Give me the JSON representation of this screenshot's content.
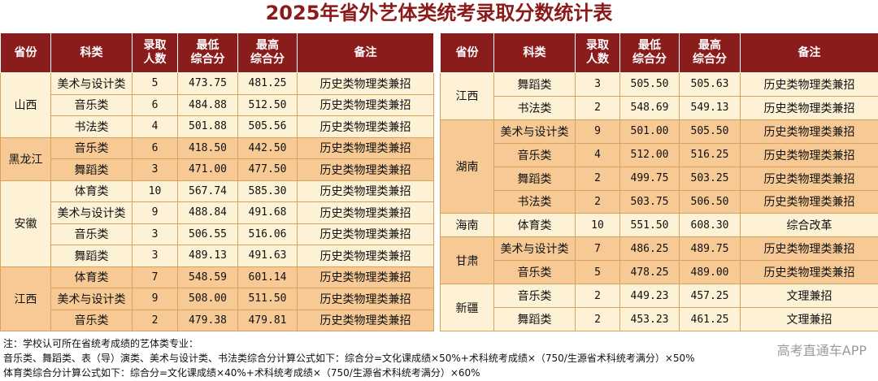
{
  "title": "2025年省外艺体类统考录取分数统计表",
  "header": [
    "省份",
    "科类",
    "录取\n人数",
    "最低\n综合分",
    "最高\n综合分",
    "备注"
  ],
  "tables": [
    {
      "groups": [
        {
          "province": "山西",
          "rows": [
            [
              "美术与设计类",
              "5",
              "473.75",
              "481.25",
              "历史类物理类兼招"
            ],
            [
              "音乐类",
              "6",
              "484.88",
              "512.50",
              "历史类物理类兼招"
            ],
            [
              "书法类",
              "4",
              "501.88",
              "505.56",
              "历史类物理类兼招"
            ]
          ]
        },
        {
          "province": "黑龙江",
          "rows": [
            [
              "音乐类",
              "6",
              "418.50",
              "442.50",
              "历史类物理类兼招"
            ],
            [
              "舞蹈类",
              "3",
              "471.00",
              "477.50",
              "历史类物理类兼招"
            ]
          ]
        },
        {
          "province": "安徽",
          "rows": [
            [
              "体育类",
              "10",
              "567.74",
              "585.30",
              "历史类物理类兼招"
            ],
            [
              "美术与设计类",
              "9",
              "488.84",
              "491.68",
              "历史类物理类兼招"
            ],
            [
              "音乐类",
              "3",
              "506.55",
              "516.06",
              "历史类物理类兼招"
            ],
            [
              "舞蹈类",
              "3",
              "489.13",
              "491.63",
              "历史类物理类兼招"
            ]
          ]
        },
        {
          "province": "江西",
          "rows": [
            [
              "体育类",
              "7",
              "548.59",
              "601.14",
              "历史类物理类兼招"
            ],
            [
              "美术与设计类",
              "9",
              "508.00",
              "511.50",
              "历史类物理类兼招"
            ],
            [
              "音乐类",
              "2",
              "479.38",
              "479.81",
              "历史类物理类兼招"
            ]
          ]
        }
      ]
    },
    {
      "groups": [
        {
          "province": "江西",
          "rows": [
            [
              "舞蹈类",
              "3",
              "505.50",
              "505.63",
              "历史类物理类兼招"
            ],
            [
              "书法类",
              "2",
              "548.69",
              "549.13",
              "历史类物理类兼招"
            ]
          ]
        },
        {
          "province": "湖南",
          "rows": [
            [
              "美术与设计类",
              "9",
              "501.00",
              "505.50",
              "历史类物理类兼招"
            ],
            [
              "音乐类",
              "4",
              "512.00",
              "516.25",
              "历史类物理类兼招"
            ],
            [
              "舞蹈类",
              "2",
              "499.75",
              "503.25",
              "历史类物理类兼招"
            ],
            [
              "书法类",
              "2",
              "503.75",
              "506.50",
              "历史类物理类兼招"
            ]
          ]
        },
        {
          "province": "海南",
          "rows": [
            [
              "体育类",
              "10",
              "551.50",
              "608.30",
              "综合改革"
            ]
          ]
        },
        {
          "province": "甘肃",
          "rows": [
            [
              "美术与设计类",
              "7",
              "486.25",
              "489.75",
              "历史类物理类兼招"
            ],
            [
              "音乐类",
              "5",
              "478.25",
              "489.00",
              "历史类物理类兼招"
            ]
          ]
        },
        {
          "province": "新疆",
          "rows": [
            [
              "音乐类",
              "2",
              "449.23",
              "457.25",
              "文理兼招"
            ],
            [
              "舞蹈类",
              "2",
              "453.23",
              "461.25",
              "文理兼招"
            ]
          ]
        }
      ]
    }
  ],
  "notes": [
    "注：学校认可所在省统考成绩的艺体类专业：",
    "音乐类、舞蹈类、表（导）演类、美术与设计类、书法类综合分计算公式如下：综合分=文化课成绩×50%+术科统考成绩×（750/生源省术科统考满分）×50%",
    "体育类综合分计算公式如下：综合分=文化课成绩×40%+术科统考成绩×（750/生源省术科统考满分）×60%"
  ],
  "watermark": "高考直通车APP"
}
